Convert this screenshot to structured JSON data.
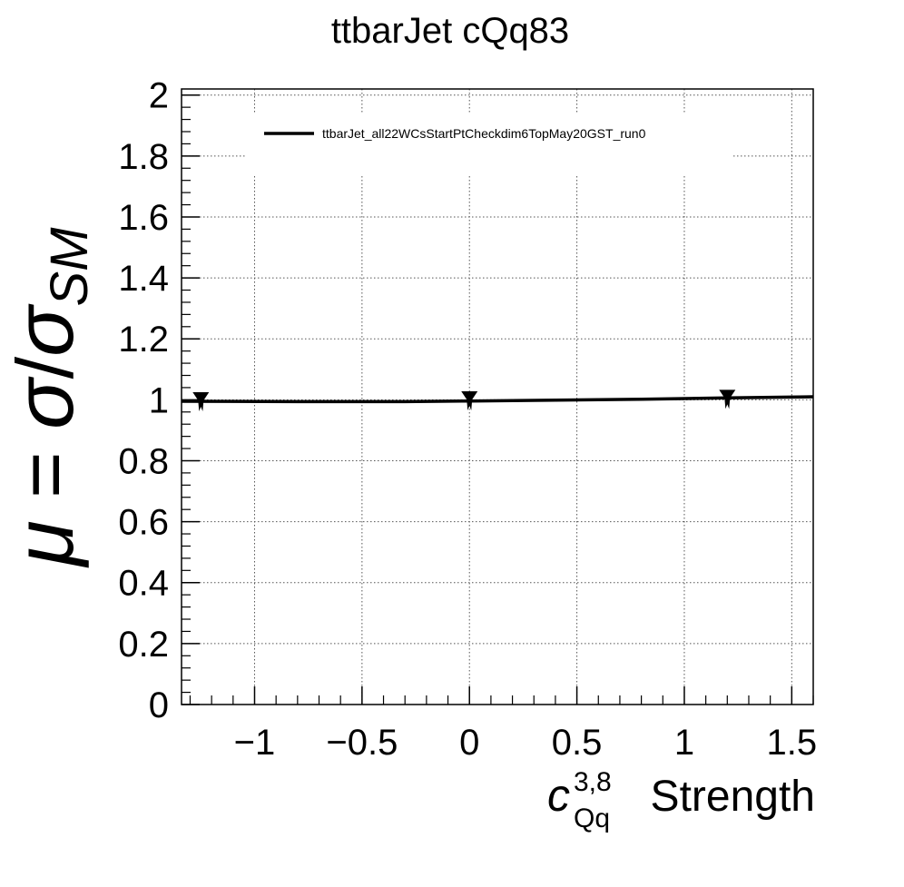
{
  "chart_data": {
    "type": "line",
    "title": "ttbarJet cQq83",
    "ylabel": {
      "mu": "μ",
      "eq": " = ",
      "sigma": "σ",
      "slash": "/",
      "sigma_sm": "σ",
      "sub": "SM"
    },
    "xlabel": {
      "c": "c",
      "sup": "3,8",
      "sub": "Qq",
      "text": "Strength"
    },
    "xlim": [
      -1.34,
      1.6
    ],
    "ylim": [
      0,
      2.02
    ],
    "xticks": [
      -1,
      -0.5,
      0,
      0.5,
      1,
      1.5
    ],
    "xtick_labels": [
      "−1",
      "−0.5",
      "0",
      "0.5",
      "1",
      "1.5"
    ],
    "yticks": [
      0,
      0.2,
      0.4,
      0.6,
      0.8,
      1,
      1.2,
      1.4,
      1.6,
      1.8,
      2
    ],
    "ytick_labels": [
      "0",
      "0.2",
      "0.4",
      "0.6",
      "0.8",
      "1",
      "1.2",
      "1.4",
      "1.6",
      "1.8",
      "2"
    ],
    "grid": true,
    "legend_position": "top",
    "series": [
      {
        "name": "ttbarJet_all22WCsStartPtCheckdim6TopMay20GST_run0",
        "color": "#000000",
        "fit_x": [
          -1.34,
          -0.8,
          -0.3,
          0.0,
          0.3,
          0.8,
          1.2,
          1.6
        ],
        "fit_y": [
          0.995,
          0.994,
          0.994,
          0.996,
          0.998,
          1.002,
          1.006,
          1.01
        ],
        "points_x": [
          -1.25,
          0.0,
          1.2
        ],
        "points_y": [
          0.995,
          0.998,
          1.003
        ]
      }
    ]
  }
}
